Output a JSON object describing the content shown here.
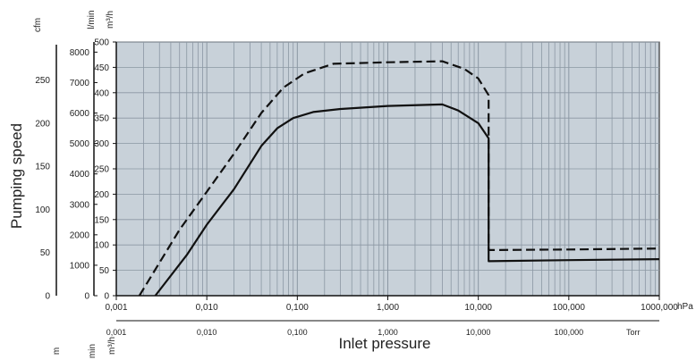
{
  "chart_data": {
    "type": "line",
    "xlabel": "Inlet pressure",
    "ylabel": "Pumping speed",
    "x_scale": "log",
    "xlim": [
      0.001,
      1000
    ],
    "ylim": [
      0,
      500
    ],
    "grid": true,
    "plot_background": "#c8d1d9",
    "grid_color": "#8b97a3",
    "units": {
      "cfm": "cfm",
      "lmin": "l/min",
      "m3h": "m³/h",
      "hpa": "hPa",
      "torr": "Torr"
    },
    "bottom_units_clipped": [
      "m",
      "min",
      "m³/h"
    ],
    "y_axes": {
      "m3h": {
        "ticks": [
          0,
          50,
          100,
          150,
          200,
          250,
          300,
          350,
          400,
          450,
          500
        ],
        "tick_labels": [
          "0",
          "50",
          "100",
          "150",
          "200",
          "250",
          "300",
          "350",
          "400",
          "450",
          "500"
        ]
      },
      "lmin": {
        "ticks": [
          0,
          1000,
          2000,
          3000,
          4000,
          5000,
          6000,
          7000,
          8000
        ],
        "tick_labels": [
          "0",
          "1000",
          "2000",
          "3000",
          "4000",
          "5000",
          "6000",
          "7000",
          "8000"
        ]
      },
      "cfm": {
        "ticks": [
          0,
          50,
          100,
          150,
          200,
          250
        ],
        "tick_labels": [
          "0",
          "50",
          "100",
          "150",
          "200",
          "250"
        ]
      }
    },
    "x_axes": {
      "hpa": {
        "ticks": [
          0.001,
          0.01,
          0.1,
          1,
          10,
          100,
          1000
        ],
        "tick_labels": [
          "0,001",
          "0,010",
          "0,100",
          "1,000",
          "10,000",
          "100,000",
          "1000,000"
        ]
      },
      "torr": {
        "ticks": [
          0.001,
          0.01,
          0.1,
          1,
          10,
          100
        ],
        "tick_labels": [
          "0,001",
          "0,010",
          "0,100",
          "1,000",
          "10,000",
          "100,000"
        ]
      }
    },
    "series": [
      {
        "style": "dashed",
        "color": "#111111",
        "x": [
          0.0018,
          0.005,
          0.01,
          0.02,
          0.04,
          0.07,
          0.12,
          0.25,
          1,
          4,
          7,
          10,
          13,
          13,
          14,
          100,
          1000
        ],
        "y": [
          0,
          130,
          205,
          280,
          360,
          410,
          438,
          457,
          460,
          462,
          447,
          428,
          395,
          90,
          90,
          91,
          93
        ]
      },
      {
        "style": "solid",
        "color": "#111111",
        "x": [
          0.0027,
          0.006,
          0.01,
          0.02,
          0.04,
          0.06,
          0.09,
          0.15,
          0.3,
          1,
          4,
          6,
          10,
          13,
          13,
          100,
          1000
        ],
        "y": [
          0,
          80,
          140,
          210,
          295,
          330,
          350,
          362,
          368,
          374,
          377,
          365,
          340,
          310,
          68,
          70,
          72
        ]
      }
    ]
  }
}
